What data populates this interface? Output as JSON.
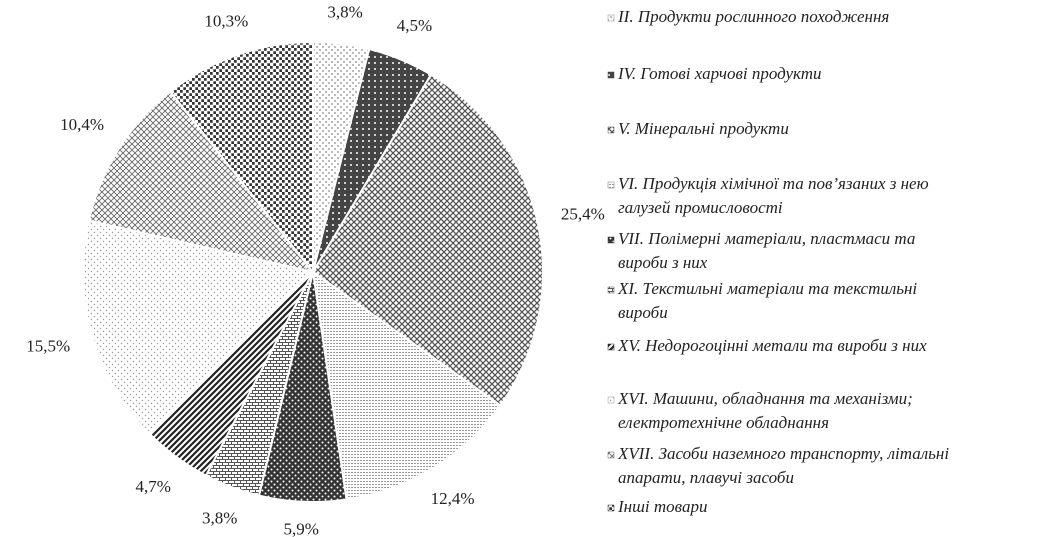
{
  "chart_data": {
    "type": "pie",
    "categories": [
      "II. Продукти рослинного походження",
      "IV. Готові харчові продукти",
      "V. Мінеральні продукти",
      "VI. Продукція хімічної та пов’язаних з нею\nгалузей промисловості",
      "VII. Полімерні матеріали, пластмаси та\nвироби з них",
      "XI. Текстильні матеріали та текстильні\nвироби",
      "XV. Недорогоцінні метали та вироби з них",
      "XVI. Машини, обладнання та механізми;\nелектротехнічне обладнання",
      "XVII. Засоби наземного транспорту, літальні\nапарати, плавучі засоби",
      "Інші товари"
    ],
    "values": [
      3.8,
      4.5,
      25.4,
      12.4,
      5.9,
      3.8,
      4.7,
      15.5,
      10.4,
      10.3
    ],
    "value_labels": [
      "3,8%",
      "4,5%",
      "25,4%",
      "12,4%",
      "5,9%",
      "3,8%",
      "4,7%",
      "15,5%",
      "10,4%",
      "10,3%"
    ],
    "colors": [
      "#888888",
      "#444444",
      "#555555",
      "#777777",
      "#333333",
      "#555555",
      "#222222",
      "#999999",
      "#666666",
      "#333333"
    ],
    "legend": "right"
  }
}
